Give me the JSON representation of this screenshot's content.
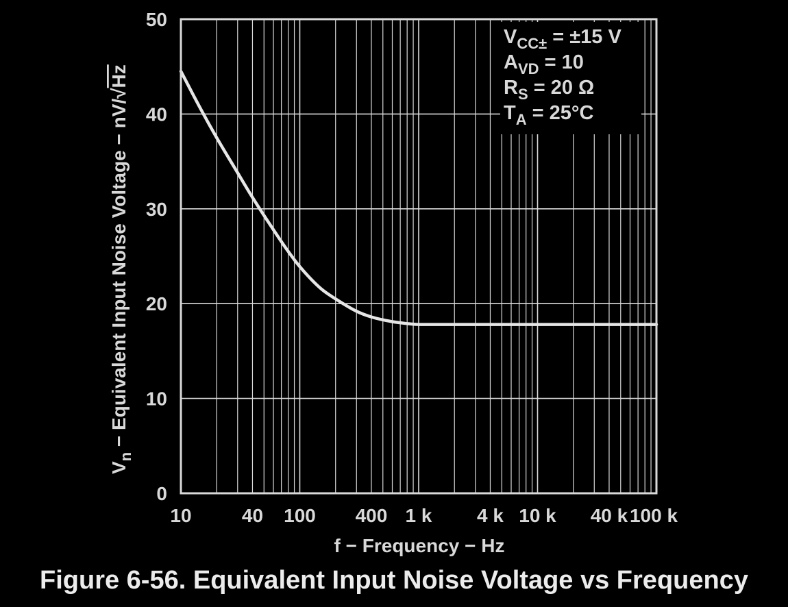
{
  "caption": "Figure 6-56. Equivalent Input Noise Voltage vs Frequency",
  "chart_data": {
    "type": "line",
    "xscale": "log",
    "xlim": [
      10,
      100000
    ],
    "ylim": [
      0,
      50
    ],
    "grid": true,
    "xlabel": "f − Frequency − Hz",
    "ylabel": {
      "symbol": "V",
      "subscript": "n",
      "text": " − Equivalent Input Noise Voltage −  nV/",
      "radicand": "Hz"
    },
    "x_ticks": [
      {
        "value": 10,
        "label": "10"
      },
      {
        "value": 40,
        "label": "40"
      },
      {
        "value": 100,
        "label": "100"
      },
      {
        "value": 400,
        "label": "400"
      },
      {
        "value": 1000,
        "label": "1 k"
      },
      {
        "value": 4000,
        "label": "4 k"
      },
      {
        "value": 10000,
        "label": "10 k"
      },
      {
        "value": 40000,
        "label": "40 k"
      },
      {
        "value": 100000,
        "label": "100 k"
      }
    ],
    "y_ticks": [
      0,
      10,
      20,
      30,
      40,
      50
    ],
    "conditions": [
      {
        "symbol": "V",
        "subscript": "CC±",
        "text": " = ±15 V"
      },
      {
        "symbol": "A",
        "subscript": "VD",
        "text": " =  10"
      },
      {
        "symbol": "R",
        "subscript": "S",
        "text": " =  20 Ω"
      },
      {
        "symbol": "T",
        "subscript": "A",
        "text": " = 25°C"
      }
    ],
    "series": [
      {
        "x": [
          10,
          15,
          20,
          30,
          40,
          60,
          80,
          100,
          150,
          200,
          300,
          400,
          600,
          800,
          1000,
          2000,
          5000,
          10000,
          100000
        ],
        "y": [
          44.5,
          40.3,
          37.5,
          33.8,
          31.2,
          27.8,
          25.5,
          23.9,
          21.6,
          20.5,
          19.2,
          18.6,
          18.1,
          17.9,
          17.8,
          17.8,
          17.8,
          17.8,
          17.8
        ]
      }
    ],
    "colors": {
      "background": "#000000",
      "grid": "#d9d9d9",
      "curve": "#e6e6e6",
      "text": "#d9d9d9"
    }
  }
}
